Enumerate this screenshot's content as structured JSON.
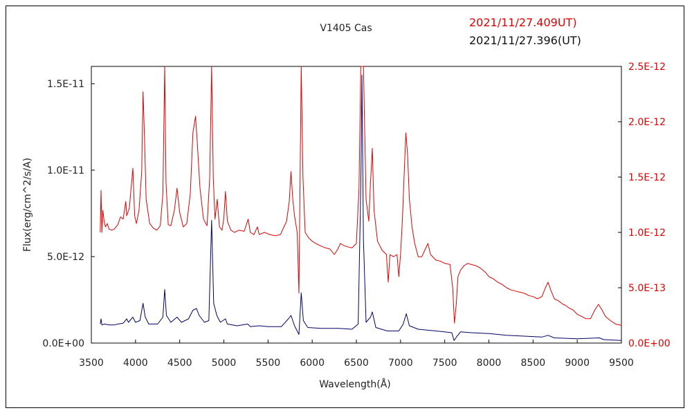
{
  "chart_data": {
    "type": "line",
    "title": "V1405 Cas",
    "xlabel": "Wavelength(Å)",
    "ylabel": "Flux(erg/cm^2/s/A)",
    "xlim": [
      3500,
      9500
    ],
    "ylim_left": [
      0,
      1.6e-11
    ],
    "ylim_right": [
      0,
      2.5e-12
    ],
    "x_ticks": [
      "3500",
      "4000",
      "4500",
      "5000",
      "5500",
      "6000",
      "6500",
      "7000",
      "7500",
      "8000",
      "8500",
      "9000",
      "9500"
    ],
    "y_left_ticks": [
      {
        "value": 0,
        "label": "0.0E+00"
      },
      {
        "value": 5e-12,
        "label": "5.0E-12"
      },
      {
        "value": 1e-11,
        "label": "1.0E-11"
      },
      {
        "value": 1.5e-11,
        "label": "1.5E-11"
      }
    ],
    "y_right_ticks": [
      {
        "value": 0,
        "label": "0.0E+00"
      },
      {
        "value": 5e-13,
        "label": "5.0E-13"
      },
      {
        "value": 1e-12,
        "label": "1.0E-12"
      },
      {
        "value": 1.5e-12,
        "label": "1.5E-12"
      },
      {
        "value": 2e-12,
        "label": "2.0E-12"
      },
      {
        "value": 2.5e-12,
        "label": "2.5E-12"
      }
    ],
    "grid": false,
    "legend_position": "top-right",
    "series": [
      {
        "name": "2021/11/27.409UT)",
        "axis": "right",
        "color": "#e00000",
        "points": [
          [
            3600,
            1e-12
          ],
          [
            3610,
            1.38e-12
          ],
          [
            3620,
            1e-12
          ],
          [
            3630,
            1.2e-12
          ],
          [
            3645,
            1.1e-12
          ],
          [
            3660,
            1.05e-12
          ],
          [
            3680,
            1.08e-12
          ],
          [
            3700,
            1.03e-12
          ],
          [
            3730,
            1.02e-12
          ],
          [
            3760,
            1.03e-12
          ],
          [
            3800,
            1.07e-12
          ],
          [
            3830,
            1.14e-12
          ],
          [
            3860,
            1.12e-12
          ],
          [
            3890,
            1.28e-12
          ],
          [
            3900,
            1.15e-12
          ],
          [
            3930,
            1.22e-12
          ],
          [
            3970,
            1.58e-12
          ],
          [
            3990,
            1.15e-12
          ],
          [
            4010,
            1.08e-12
          ],
          [
            4040,
            1.2e-12
          ],
          [
            4070,
            1.55e-12
          ],
          [
            4085,
            2.27e-12
          ],
          [
            4100,
            1.9e-12
          ],
          [
            4120,
            1.3e-12
          ],
          [
            4160,
            1.08e-12
          ],
          [
            4200,
            1.04e-12
          ],
          [
            4240,
            1.02e-12
          ],
          [
            4280,
            1.06e-12
          ],
          [
            4310,
            1.35e-12
          ],
          [
            4330,
            2.5e-12
          ],
          [
            4345,
            1.45e-12
          ],
          [
            4370,
            1.07e-12
          ],
          [
            4400,
            1.06e-12
          ],
          [
            4440,
            1.2e-12
          ],
          [
            4470,
            1.4e-12
          ],
          [
            4500,
            1.18e-12
          ],
          [
            4540,
            1.05e-12
          ],
          [
            4580,
            1.08e-12
          ],
          [
            4620,
            1.35e-12
          ],
          [
            4650,
            1.9e-12
          ],
          [
            4680,
            2.05e-12
          ],
          [
            4700,
            1.8e-12
          ],
          [
            4730,
            1.4e-12
          ],
          [
            4770,
            1.12e-12
          ],
          [
            4810,
            1.06e-12
          ],
          [
            4840,
            1.5e-12
          ],
          [
            4861,
            2.5e-12
          ],
          [
            4880,
            1.5e-12
          ],
          [
            4900,
            1.12e-12
          ],
          [
            4925,
            1.3e-12
          ],
          [
            4950,
            1.05e-12
          ],
          [
            4980,
            1.02e-12
          ],
          [
            5000,
            1.13e-12
          ],
          [
            5018,
            1.37e-12
          ],
          [
            5040,
            1.1e-12
          ],
          [
            5080,
            1.02e-12
          ],
          [
            5120,
            1e-12
          ],
          [
            5170,
            1.02e-12
          ],
          [
            5230,
            1.01e-12
          ],
          [
            5275,
            1.12e-12
          ],
          [
            5300,
            1e-12
          ],
          [
            5340,
            9.8e-13
          ],
          [
            5380,
            1.05e-12
          ],
          [
            5400,
            9.8e-13
          ],
          [
            5460,
            1e-12
          ],
          [
            5520,
            9.8e-13
          ],
          [
            5580,
            9.7e-13
          ],
          [
            5640,
            9.8e-13
          ],
          [
            5680,
            1.05e-12
          ],
          [
            5710,
            1.1e-12
          ],
          [
            5740,
            1.28e-12
          ],
          [
            5760,
            1.55e-12
          ],
          [
            5780,
            1.3e-12
          ],
          [
            5800,
            1.15e-12
          ],
          [
            5830,
            1e-12
          ],
          [
            5850,
            4.5e-13
          ],
          [
            5876,
            2.5e-12
          ],
          [
            5895,
            1.5e-12
          ],
          [
            5920,
            1e-12
          ],
          [
            5960,
            9.5e-13
          ],
          [
            6000,
            9.2e-13
          ],
          [
            6040,
            9e-13
          ],
          [
            6090,
            8.8e-13
          ],
          [
            6150,
            8.6e-13
          ],
          [
            6200,
            8.5e-13
          ],
          [
            6250,
            8e-13
          ],
          [
            6290,
            8.5e-13
          ],
          [
            6320,
            9e-13
          ],
          [
            6360,
            8.8e-13
          ],
          [
            6400,
            8.7e-13
          ],
          [
            6450,
            8.6e-13
          ],
          [
            6500,
            9e-13
          ],
          [
            6530,
            1.4e-12
          ],
          [
            6550,
            2.5e-12
          ],
          [
            6580,
            2.5e-12
          ],
          [
            6610,
            1.3e-12
          ],
          [
            6640,
            1.1e-12
          ],
          [
            6660,
            1.45e-12
          ],
          [
            6680,
            1.76e-12
          ],
          [
            6700,
            1.2e-12
          ],
          [
            6740,
            9.2e-13
          ],
          [
            6790,
            8.4e-13
          ],
          [
            6840,
            8e-13
          ],
          [
            6860,
            5.5e-13
          ],
          [
            6880,
            8e-13
          ],
          [
            6920,
            7.8e-13
          ],
          [
            6960,
            8e-13
          ],
          [
            6980,
            6e-13
          ],
          [
            7000,
            8e-13
          ],
          [
            7020,
            1.1e-12
          ],
          [
            7040,
            1.5e-12
          ],
          [
            7060,
            1.9e-12
          ],
          [
            7080,
            1.7e-12
          ],
          [
            7100,
            1.3e-12
          ],
          [
            7130,
            1.05e-12
          ],
          [
            7160,
            9e-13
          ],
          [
            7200,
            7.8e-13
          ],
          [
            7240,
            7.8e-13
          ],
          [
            7280,
            8.5e-13
          ],
          [
            7310,
            9e-13
          ],
          [
            7340,
            8e-13
          ],
          [
            7400,
            7.5e-13
          ],
          [
            7450,
            7.4e-13
          ],
          [
            7500,
            7.2e-13
          ],
          [
            7560,
            7.1e-13
          ],
          [
            7590,
            5e-13
          ],
          [
            7610,
            1.8e-13
          ],
          [
            7630,
            3.5e-13
          ],
          [
            7650,
            6e-13
          ],
          [
            7680,
            6.6e-13
          ],
          [
            7720,
            7e-13
          ],
          [
            7760,
            7.2e-13
          ],
          [
            7800,
            7.1e-13
          ],
          [
            7850,
            7e-13
          ],
          [
            7900,
            6.8e-13
          ],
          [
            7960,
            6.4e-13
          ],
          [
            8000,
            6e-13
          ],
          [
            8050,
            5.8e-13
          ],
          [
            8100,
            5.5e-13
          ],
          [
            8150,
            5.3e-13
          ],
          [
            8200,
            5e-13
          ],
          [
            8250,
            4.8e-13
          ],
          [
            8300,
            4.7e-13
          ],
          [
            8350,
            4.6e-13
          ],
          [
            8400,
            4.5e-13
          ],
          [
            8450,
            4.3e-13
          ],
          [
            8500,
            4.2e-13
          ],
          [
            8550,
            4e-13
          ],
          [
            8600,
            4.2e-13
          ],
          [
            8640,
            5e-13
          ],
          [
            8670,
            5.5e-13
          ],
          [
            8700,
            4.8e-13
          ],
          [
            8740,
            4e-13
          ],
          [
            8790,
            3.8e-13
          ],
          [
            8840,
            3.5e-13
          ],
          [
            8870,
            3.4e-13
          ],
          [
            8900,
            3.2e-13
          ],
          [
            8950,
            3e-13
          ],
          [
            9000,
            2.6e-13
          ],
          [
            9050,
            2.4e-13
          ],
          [
            9100,
            2.2e-13
          ],
          [
            9150,
            2.2e-13
          ],
          [
            9200,
            3e-13
          ],
          [
            9240,
            3.5e-13
          ],
          [
            9280,
            3e-13
          ],
          [
            9320,
            2.4e-13
          ],
          [
            9380,
            2e-13
          ],
          [
            9440,
            1.7e-13
          ],
          [
            9500,
            1.6e-13
          ]
        ]
      },
      {
        "name": "2021/11/27.396(UT)",
        "axis": "left",
        "color": "#000066",
        "points": [
          [
            3600,
            1.1e-12
          ],
          [
            3610,
            1.4e-12
          ],
          [
            3620,
            1.05e-12
          ],
          [
            3650,
            1.1e-12
          ],
          [
            3700,
            1.05e-12
          ],
          [
            3760,
            1.05e-12
          ],
          [
            3800,
            1.1e-12
          ],
          [
            3860,
            1.15e-12
          ],
          [
            3900,
            1.4e-12
          ],
          [
            3920,
            1.2e-12
          ],
          [
            3970,
            1.5e-12
          ],
          [
            4000,
            1.2e-12
          ],
          [
            4050,
            1.3e-12
          ],
          [
            4085,
            2.3e-12
          ],
          [
            4110,
            1.5e-12
          ],
          [
            4150,
            1.1e-12
          ],
          [
            4250,
            1.1e-12
          ],
          [
            4310,
            1.5e-12
          ],
          [
            4330,
            3.1e-12
          ],
          [
            4350,
            1.6e-12
          ],
          [
            4400,
            1.2e-12
          ],
          [
            4470,
            1.5e-12
          ],
          [
            4520,
            1.2e-12
          ],
          [
            4600,
            1.4e-12
          ],
          [
            4650,
            1.9e-12
          ],
          [
            4690,
            2e-12
          ],
          [
            4720,
            1.6e-12
          ],
          [
            4780,
            1.2e-12
          ],
          [
            4830,
            1.3e-12
          ],
          [
            4861,
            7.1e-12
          ],
          [
            4885,
            2.3e-12
          ],
          [
            4920,
            1.6e-12
          ],
          [
            4960,
            1.2e-12
          ],
          [
            5018,
            1.4e-12
          ],
          [
            5040,
            1.1e-12
          ],
          [
            5150,
            1e-12
          ],
          [
            5270,
            1.1e-12
          ],
          [
            5300,
            9.5e-13
          ],
          [
            5400,
            1e-12
          ],
          [
            5500,
            9.5e-13
          ],
          [
            5650,
            9.5e-13
          ],
          [
            5730,
            1.4e-12
          ],
          [
            5760,
            1.6e-12
          ],
          [
            5800,
            1e-12
          ],
          [
            5850,
            5e-13
          ],
          [
            5876,
            2.9e-12
          ],
          [
            5900,
            1.3e-12
          ],
          [
            5950,
            9e-13
          ],
          [
            6100,
            8.5e-13
          ],
          [
            6300,
            8.5e-13
          ],
          [
            6450,
            8e-13
          ],
          [
            6520,
            1.1e-12
          ],
          [
            6550,
            9e-12
          ],
          [
            6563,
            1.55e-11
          ],
          [
            6580,
            6e-12
          ],
          [
            6610,
            1.2e-12
          ],
          [
            6660,
            1.5e-12
          ],
          [
            6680,
            1.8e-12
          ],
          [
            6720,
            9e-13
          ],
          [
            6850,
            7e-13
          ],
          [
            6980,
            7e-13
          ],
          [
            7030,
            1.1e-12
          ],
          [
            7065,
            1.7e-12
          ],
          [
            7100,
            1e-12
          ],
          [
            7200,
            8e-13
          ],
          [
            7400,
            7e-13
          ],
          [
            7580,
            6e-13
          ],
          [
            7605,
            1.5e-13
          ],
          [
            7640,
            4e-13
          ],
          [
            7680,
            6.5e-13
          ],
          [
            7800,
            6e-13
          ],
          [
            8000,
            5.5e-13
          ],
          [
            8200,
            4.5e-13
          ],
          [
            8400,
            4e-13
          ],
          [
            8600,
            3.5e-13
          ],
          [
            8670,
            4.5e-13
          ],
          [
            8740,
            3e-13
          ],
          [
            9000,
            2.5e-13
          ],
          [
            9250,
            3e-13
          ],
          [
            9300,
            2e-13
          ],
          [
            9500,
            1.5e-13
          ]
        ]
      }
    ]
  }
}
